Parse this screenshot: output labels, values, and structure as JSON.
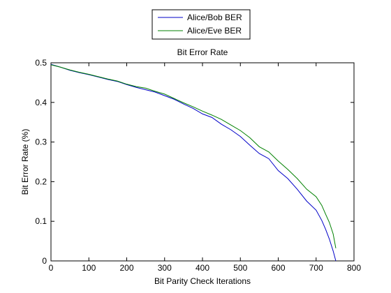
{
  "chart_data": {
    "type": "line",
    "title": "Bit Error Rate",
    "xlabel": "Bit Parity Check Iterations",
    "ylabel": "Bit Error Rate (%)",
    "xlim": [
      0,
      800
    ],
    "ylim": [
      0,
      0.5
    ],
    "xticks": [
      0,
      100,
      200,
      300,
      400,
      500,
      600,
      700,
      800
    ],
    "yticks": [
      0,
      0.1,
      0.2,
      0.3,
      0.4,
      0.5
    ],
    "grid": false,
    "legend_position": "top-center (outside axes)",
    "series": [
      {
        "name": "Alice/Bob BER",
        "color": "#0000c8",
        "x": [
          0,
          25,
          50,
          75,
          100,
          125,
          150,
          175,
          200,
          225,
          250,
          275,
          300,
          325,
          350,
          375,
          400,
          425,
          450,
          475,
          500,
          525,
          550,
          575,
          600,
          625,
          650,
          675,
          700,
          715,
          725,
          735,
          745,
          752
        ],
        "y": [
          0.496,
          0.489,
          0.481,
          0.475,
          0.47,
          0.464,
          0.458,
          0.453,
          0.445,
          0.438,
          0.432,
          0.426,
          0.417,
          0.408,
          0.396,
          0.385,
          0.371,
          0.362,
          0.345,
          0.331,
          0.314,
          0.292,
          0.271,
          0.258,
          0.228,
          0.208,
          0.181,
          0.151,
          0.128,
          0.102,
          0.08,
          0.055,
          0.025,
          0.0
        ]
      },
      {
        "name": "Alice/Eve BER",
        "color": "#008000",
        "x": [
          0,
          25,
          50,
          75,
          100,
          125,
          150,
          175,
          200,
          225,
          250,
          275,
          300,
          325,
          350,
          375,
          400,
          425,
          450,
          475,
          500,
          525,
          550,
          575,
          600,
          625,
          650,
          675,
          700,
          715,
          725,
          735,
          745,
          752
        ],
        "y": [
          0.495,
          0.489,
          0.482,
          0.476,
          0.471,
          0.465,
          0.459,
          0.454,
          0.446,
          0.44,
          0.436,
          0.428,
          0.421,
          0.41,
          0.399,
          0.389,
          0.378,
          0.368,
          0.357,
          0.343,
          0.329,
          0.311,
          0.288,
          0.275,
          0.252,
          0.231,
          0.208,
          0.181,
          0.162,
          0.14,
          0.118,
          0.097,
          0.068,
          0.032
        ]
      }
    ]
  }
}
